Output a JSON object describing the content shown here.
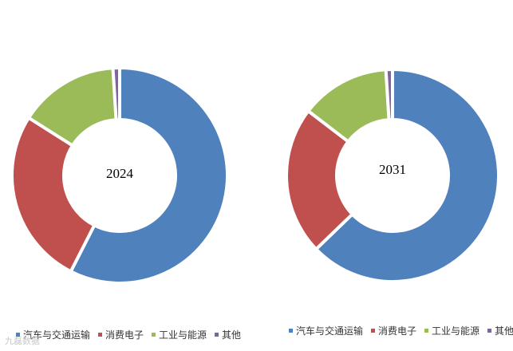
{
  "chart_data": [
    {
      "type": "pie",
      "center_label": "2024",
      "categories": [
        "汽车与交通运输",
        "消费电子",
        "工业与能源",
        "其他"
      ],
      "values": [
        57.5,
        26.5,
        15.0,
        1.0
      ],
      "colors": [
        "#4f81bd",
        "#c0504d",
        "#9bbb59",
        "#8064a2"
      ]
    },
    {
      "type": "pie",
      "center_label": "2031",
      "categories": [
        "汽车与交通运输",
        "消费电子",
        "工业与能源",
        "其他"
      ],
      "values": [
        62.8,
        22.6,
        13.6,
        1.0
      ],
      "colors": [
        "#4f81bd",
        "#c0504d",
        "#9bbb59",
        "#8064a2"
      ]
    }
  ],
  "legend": [
    {
      "label": "汽车与交通运输",
      "color": "#4f81bd"
    },
    {
      "label": "消费电子",
      "color": "#c0504d"
    },
    {
      "label": "工业与能源",
      "color": "#9bbb59"
    },
    {
      "label": "其他",
      "color": "#8064a2"
    }
  ],
  "watermark": "九磊数据"
}
